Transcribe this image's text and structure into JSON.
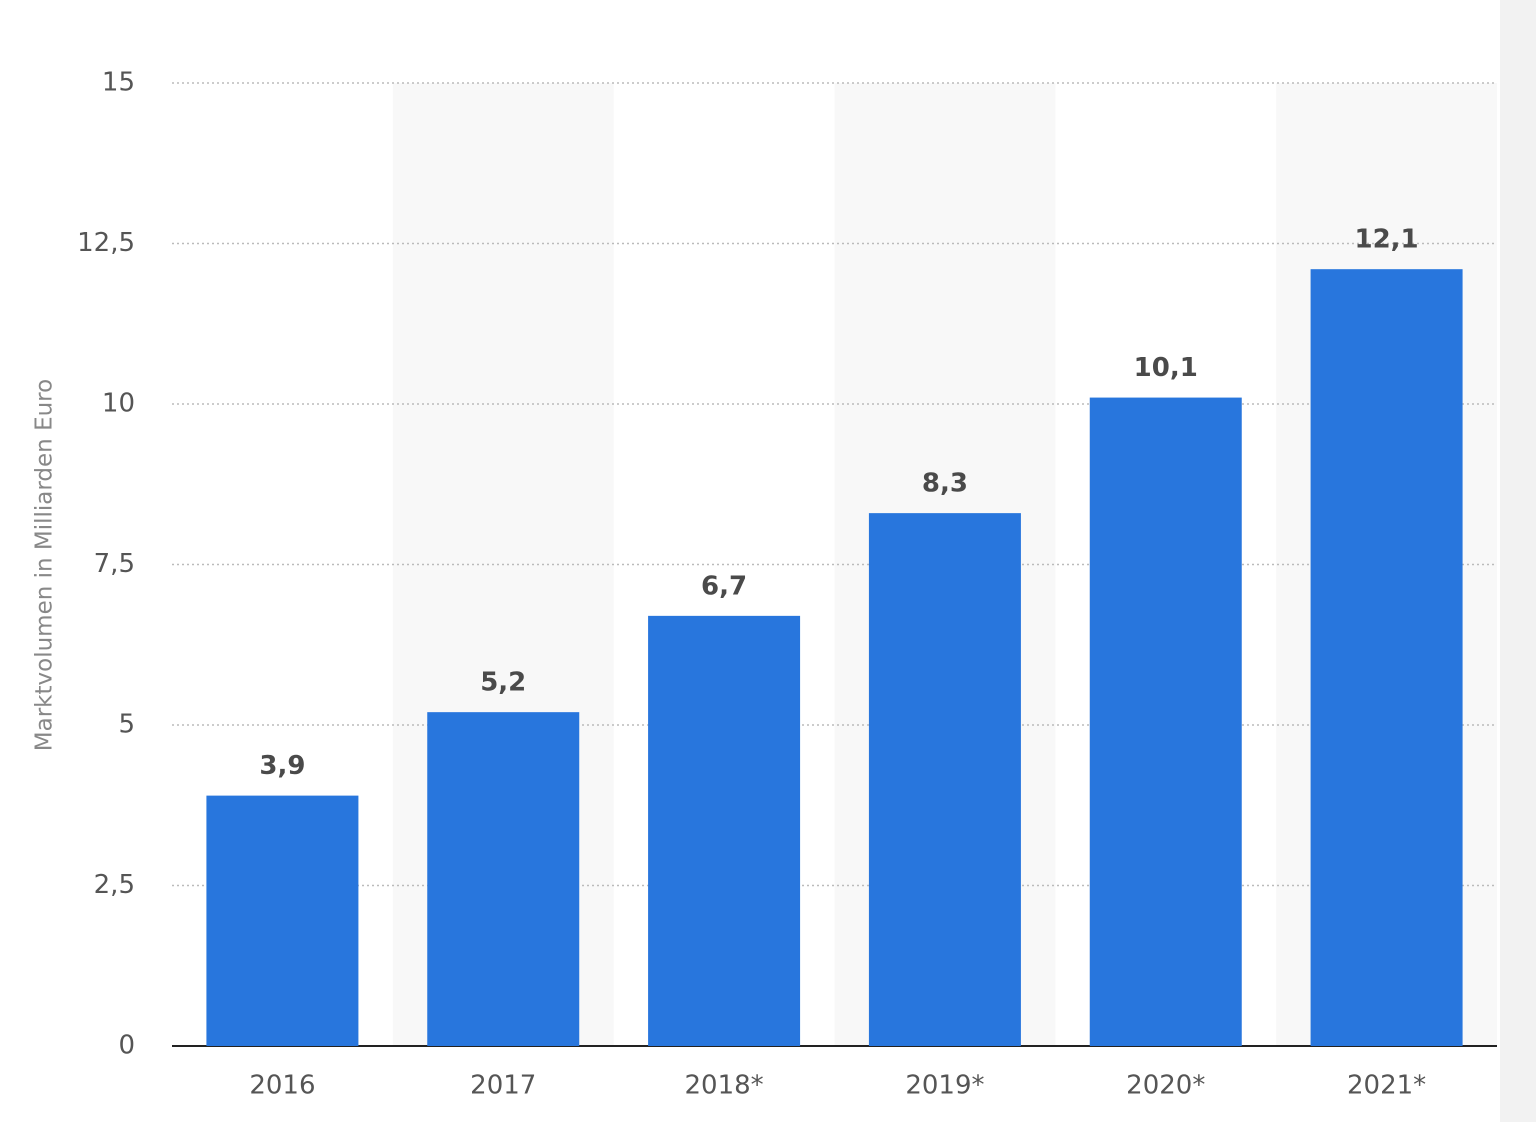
{
  "chart_data": {
    "type": "bar",
    "y_label": "Marktvolumen in Milliarden Euro",
    "categories": [
      "2016",
      "2017",
      "2018*",
      "2019*",
      "2020*",
      "2021*"
    ],
    "values": [
      3.9,
      5.2,
      6.7,
      8.3,
      10.1,
      12.1
    ],
    "value_labels": [
      "3,9",
      "5,2",
      "6,7",
      "8,3",
      "10,1",
      "12,1"
    ],
    "color": "#2876dd",
    "ylim": [
      0,
      15
    ],
    "yticks": [
      0,
      {
        "value": 2.5,
        "label": "2,5"
      },
      5,
      {
        "value": 7.5,
        "label": "7,5"
      },
      10,
      {
        "value": 12.5,
        "label": "12,5"
      },
      15
    ],
    "grid": true
  }
}
